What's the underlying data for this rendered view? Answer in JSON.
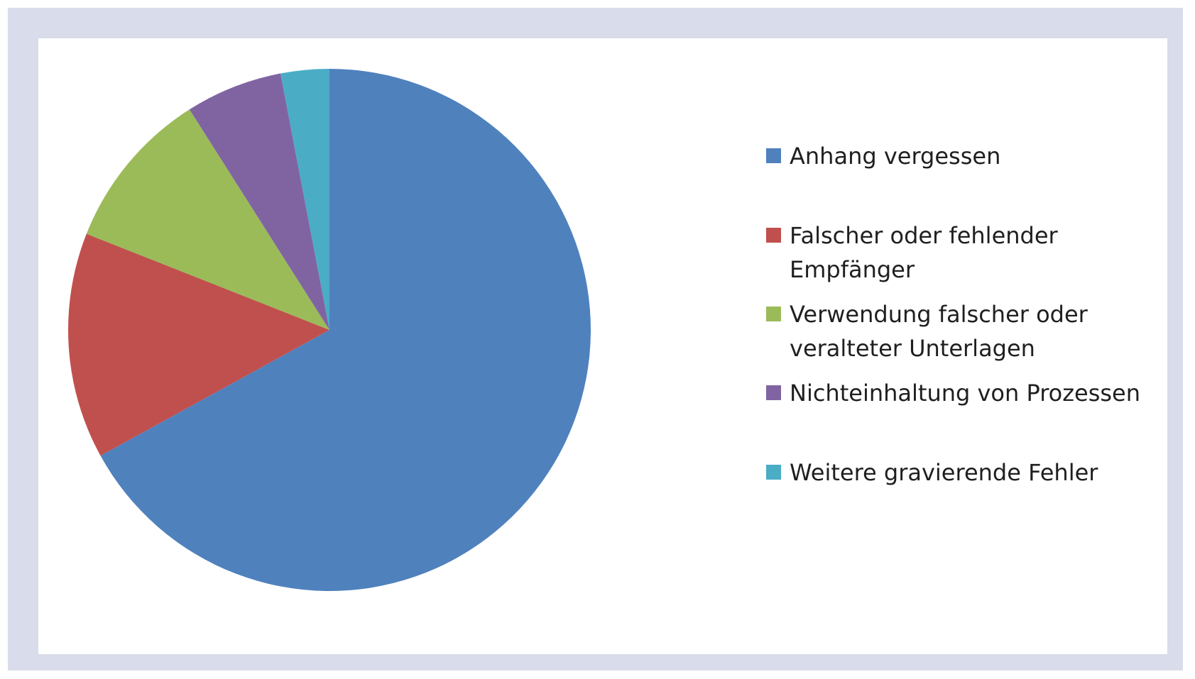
{
  "chart_data": {
    "type": "pie",
    "title": "",
    "start_angle_deg": 0,
    "direction": "clockwise",
    "legend_position": "right",
    "slices": [
      {
        "label": "Anhang vergessen",
        "value": 67,
        "color": "#4f81bd"
      },
      {
        "label": "Falscher oder fehlender Empfänger",
        "value": 14,
        "color": "#c0504d"
      },
      {
        "label": "Verwendung falscher oder veralteter Unterlagen",
        "value": 10,
        "color": "#9bbb59"
      },
      {
        "label": "Nichteinhaltung von Prozessen",
        "value": 6,
        "color": "#8064a2"
      },
      {
        "label": "Weitere gravierende Fehler",
        "value": 3,
        "color": "#4bacc6"
      }
    ]
  }
}
